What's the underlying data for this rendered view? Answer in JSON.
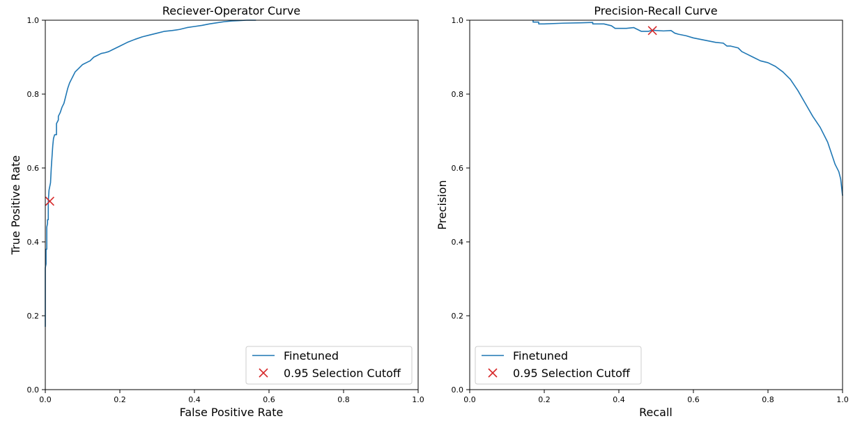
{
  "chart_data": [
    {
      "type": "line",
      "title": "Reciever-Operator Curve",
      "xlabel": "False Positive Rate",
      "ylabel": "True Positive Rate",
      "xlim": [
        0,
        1
      ],
      "ylim": [
        0,
        1
      ],
      "xticks": [
        "0.0",
        "0.2",
        "0.4",
        "0.6",
        "0.8",
        "1.0"
      ],
      "yticks": [
        "0.0",
        "0.2",
        "0.4",
        "0.6",
        "0.8",
        "1.0"
      ],
      "grid": false,
      "legend_position": "lower-right",
      "series": [
        {
          "name": "Finetuned",
          "color": "#1f77b4",
          "x": [
            0.0,
            0.0,
            0.002,
            0.002,
            0.004,
            0.004,
            0.006,
            0.006,
            0.008,
            0.008,
            0.01,
            0.012,
            0.014,
            0.016,
            0.018,
            0.02,
            0.022,
            0.025,
            0.028,
            0.03,
            0.03,
            0.035,
            0.035,
            0.04,
            0.045,
            0.05,
            0.055,
            0.06,
            0.065,
            0.07,
            0.075,
            0.08,
            0.09,
            0.1,
            0.11,
            0.12,
            0.13,
            0.14,
            0.15,
            0.16,
            0.17,
            0.18,
            0.2,
            0.22,
            0.24,
            0.26,
            0.28,
            0.3,
            0.32,
            0.34,
            0.36,
            0.38,
            0.4,
            0.42,
            0.44,
            0.46,
            0.48,
            0.5,
            0.52,
            0.54,
            0.565
          ],
          "y": [
            0.17,
            0.33,
            0.34,
            0.38,
            0.38,
            0.44,
            0.45,
            0.46,
            0.46,
            0.51,
            0.54,
            0.55,
            0.56,
            0.6,
            0.63,
            0.66,
            0.68,
            0.69,
            0.69,
            0.69,
            0.72,
            0.73,
            0.74,
            0.75,
            0.765,
            0.775,
            0.795,
            0.815,
            0.83,
            0.84,
            0.85,
            0.86,
            0.87,
            0.88,
            0.885,
            0.89,
            0.9,
            0.905,
            0.91,
            0.912,
            0.915,
            0.92,
            0.93,
            0.94,
            0.948,
            0.955,
            0.96,
            0.965,
            0.97,
            0.972,
            0.975,
            0.98,
            0.983,
            0.986,
            0.99,
            0.993,
            0.996,
            0.998,
            0.999,
            1.0,
            1.0
          ]
        }
      ],
      "markers": [
        {
          "name": "0.95 Selection Cutoff",
          "symbol": "x",
          "color": "#d62728",
          "x": 0.012,
          "y": 0.51
        }
      ]
    },
    {
      "type": "line",
      "title": "Precision-Recall Curve",
      "xlabel": "Recall",
      "ylabel": "Precision",
      "xlim": [
        0,
        1
      ],
      "ylim": [
        0,
        1
      ],
      "xticks": [
        "0.0",
        "0.2",
        "0.4",
        "0.6",
        "0.8",
        "1.0"
      ],
      "yticks": [
        "0.0",
        "0.2",
        "0.4",
        "0.6",
        "0.8",
        "1.0"
      ],
      "grid": false,
      "legend_position": "lower-left",
      "series": [
        {
          "name": "Finetuned",
          "color": "#1f77b4",
          "x": [
            0.17,
            0.17,
            0.185,
            0.185,
            0.2,
            0.25,
            0.3,
            0.33,
            0.33,
            0.36,
            0.38,
            0.39,
            0.4,
            0.42,
            0.44,
            0.46,
            0.47,
            0.48,
            0.49,
            0.5,
            0.52,
            0.54,
            0.55,
            0.56,
            0.58,
            0.6,
            0.62,
            0.64,
            0.66,
            0.68,
            0.69,
            0.7,
            0.72,
            0.73,
            0.74,
            0.76,
            0.78,
            0.8,
            0.82,
            0.84,
            0.86,
            0.88,
            0.9,
            0.92,
            0.94,
            0.96,
            0.97,
            0.98,
            0.99,
            0.995,
            1.0
          ],
          "y": [
            1.0,
            0.995,
            0.995,
            0.99,
            0.99,
            0.992,
            0.993,
            0.994,
            0.99,
            0.99,
            0.985,
            0.978,
            0.978,
            0.978,
            0.98,
            0.97,
            0.97,
            0.97,
            0.973,
            0.972,
            0.971,
            0.972,
            0.965,
            0.962,
            0.958,
            0.952,
            0.948,
            0.944,
            0.94,
            0.938,
            0.93,
            0.93,
            0.925,
            0.915,
            0.91,
            0.9,
            0.89,
            0.885,
            0.875,
            0.86,
            0.84,
            0.81,
            0.775,
            0.74,
            0.71,
            0.67,
            0.64,
            0.61,
            0.59,
            0.57,
            0.525
          ]
        }
      ],
      "markers": [
        {
          "name": "0.95 Selection Cutoff",
          "symbol": "x",
          "color": "#d62728",
          "x": 0.49,
          "y": 0.972
        }
      ]
    }
  ]
}
